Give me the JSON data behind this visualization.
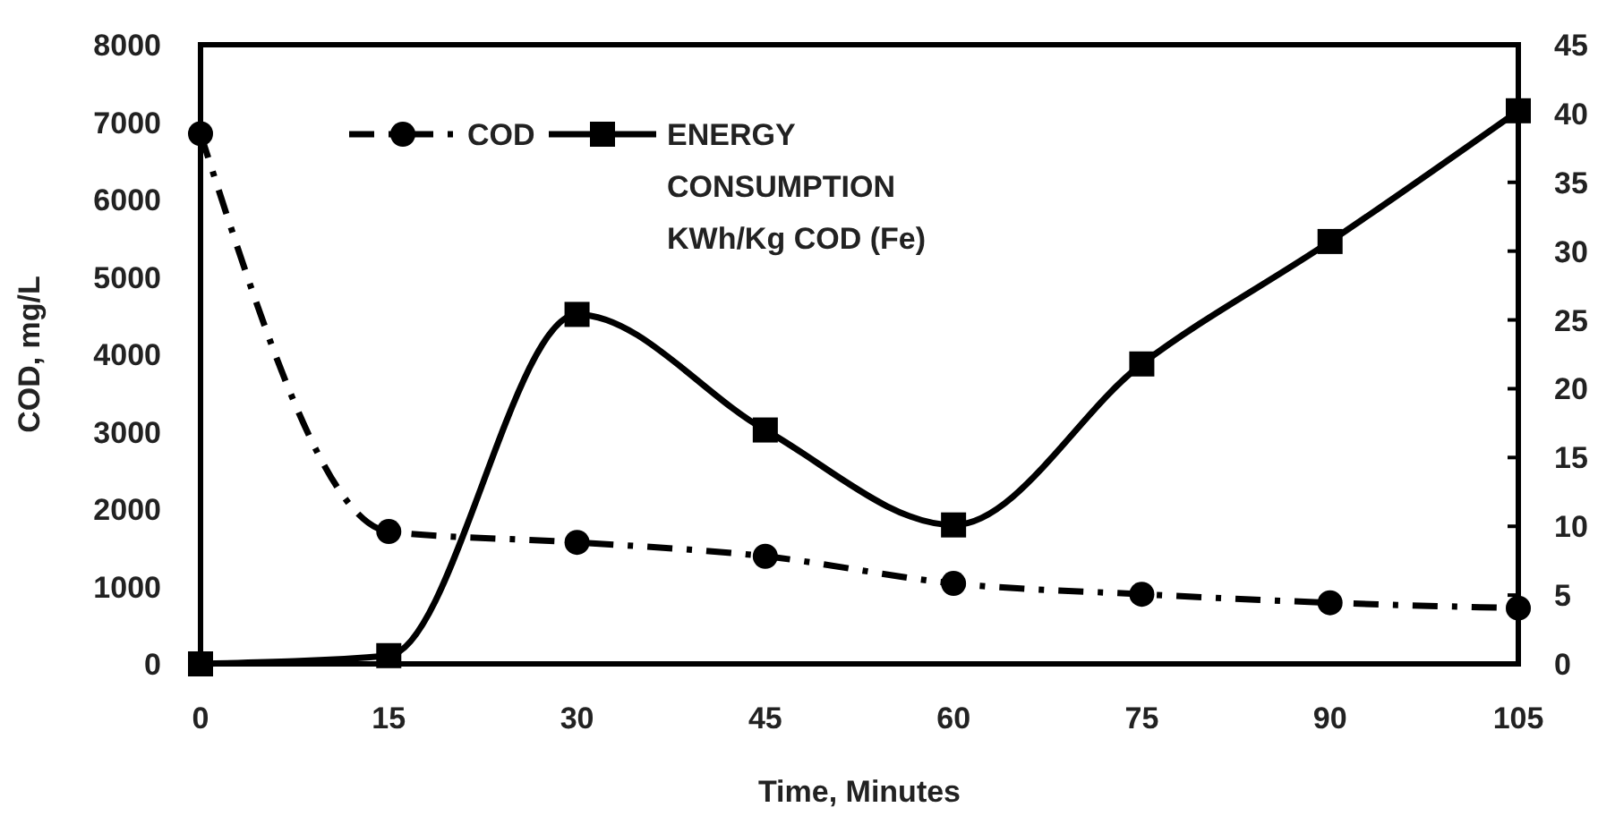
{
  "chart_data": {
    "type": "line",
    "xlabel": "Time, Minutes",
    "ylabel": "COD, mg/L",
    "x": [
      0,
      15,
      30,
      45,
      60,
      75,
      90,
      105
    ],
    "xlim": [
      0,
      105
    ],
    "xticks": [
      0,
      15,
      30,
      45,
      60,
      75,
      90,
      105
    ],
    "ylim": [
      0,
      8000
    ],
    "yticks": [
      0,
      1000,
      2000,
      3000,
      4000,
      5000,
      6000,
      7000,
      8000
    ],
    "y2lim": [
      0,
      45
    ],
    "y2ticks": [
      0,
      5,
      10,
      15,
      20,
      25,
      30,
      35,
      40,
      45
    ],
    "legend": "top",
    "grid": false,
    "series": [
      {
        "name": "COD",
        "color": "#000000",
        "marker": "circle",
        "line_style": "dashed",
        "values": [
          6850,
          1710,
          1570,
          1390,
          1040,
          900,
          790,
          720
        ]
      },
      {
        "name": "ENERGY CONSUMPTION KWh/Kg COD (Fe)",
        "color": "#000000",
        "marker": "square",
        "line_style": "solid",
        "axis": "y2",
        "values": [
          0,
          0.6,
          25.4,
          17,
          10.1,
          21.8,
          30.7,
          40.2
        ]
      }
    ]
  }
}
